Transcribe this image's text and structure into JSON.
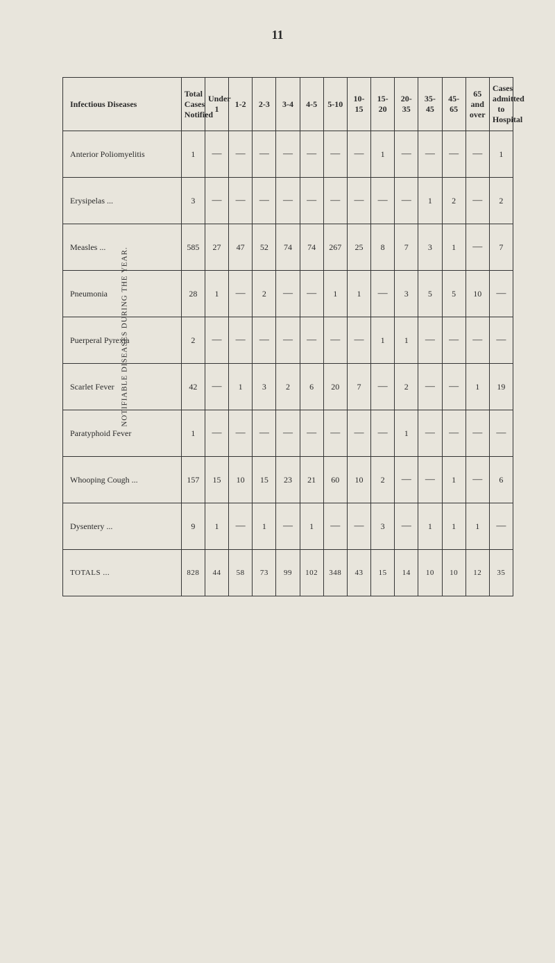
{
  "page_number": "11",
  "side_caption": "NOTIFIABLE DISEASES DURING THE YEAR.",
  "columns": [
    {
      "key": "label",
      "header": "Infectious Diseases"
    },
    {
      "key": "total",
      "header": "Total Cases Notified"
    },
    {
      "key": "u1",
      "header": "Under 1"
    },
    {
      "key": "a1_2",
      "header": "1-2"
    },
    {
      "key": "a2_3",
      "header": "2-3"
    },
    {
      "key": "a3_4",
      "header": "3-4"
    },
    {
      "key": "a4_5",
      "header": "4-5"
    },
    {
      "key": "a5_10",
      "header": "5-10"
    },
    {
      "key": "a10_15",
      "header": "10-15"
    },
    {
      "key": "a15_20",
      "header": "15-20"
    },
    {
      "key": "a20_35",
      "header": "20-35"
    },
    {
      "key": "a35_45",
      "header": "35-45"
    },
    {
      "key": "a45_65",
      "header": "45-65"
    },
    {
      "key": "a65",
      "header": "65 and over"
    },
    {
      "key": "hosp",
      "header": "Cases admitted to Hospital"
    }
  ],
  "rows": [
    {
      "label": "Anterior Poliomyelitis",
      "total": "1",
      "u1": "—",
      "a1_2": "—",
      "a2_3": "—",
      "a3_4": "—",
      "a4_5": "—",
      "a5_10": "—",
      "a10_15": "—",
      "a15_20": "1",
      "a20_35": "—",
      "a35_45": "—",
      "a45_65": "—",
      "a65": "—",
      "hosp": "1"
    },
    {
      "label": "Erysipelas ...",
      "total": "3",
      "u1": "—",
      "a1_2": "—",
      "a2_3": "—",
      "a3_4": "—",
      "a4_5": "—",
      "a5_10": "—",
      "a10_15": "—",
      "a15_20": "—",
      "a20_35": "—",
      "a35_45": "1",
      "a45_65": "2",
      "a65": "—",
      "hosp": "2"
    },
    {
      "label": "Measles ...",
      "total": "585",
      "u1": "27",
      "a1_2": "47",
      "a2_3": "52",
      "a3_4": "74",
      "a4_5": "74",
      "a5_10": "267",
      "a10_15": "25",
      "a15_20": "8",
      "a20_35": "7",
      "a35_45": "3",
      "a45_65": "1",
      "a65": "—",
      "hosp": "7"
    },
    {
      "label": "Pneumonia",
      "total": "28",
      "u1": "1",
      "a1_2": "—",
      "a2_3": "2",
      "a3_4": "—",
      "a4_5": "—",
      "a5_10": "1",
      "a10_15": "1",
      "a15_20": "—",
      "a20_35": "3",
      "a35_45": "5",
      "a45_65": "5",
      "a65": "10",
      "hosp": "—"
    },
    {
      "label": "Puerperal Pyrexia",
      "total": "2",
      "u1": "—",
      "a1_2": "—",
      "a2_3": "—",
      "a3_4": "—",
      "a4_5": "—",
      "a5_10": "—",
      "a10_15": "—",
      "a15_20": "1",
      "a20_35": "1",
      "a35_45": "—",
      "a45_65": "—",
      "a65": "—",
      "hosp": "—"
    },
    {
      "label": "Scarlet Fever",
      "total": "42",
      "u1": "—",
      "a1_2": "1",
      "a2_3": "3",
      "a3_4": "2",
      "a4_5": "6",
      "a5_10": "20",
      "a10_15": "7",
      "a15_20": "—",
      "a20_35": "2",
      "a35_45": "—",
      "a45_65": "—",
      "a65": "1",
      "hosp": "19"
    },
    {
      "label": "Paratyphoid Fever",
      "total": "1",
      "u1": "—",
      "a1_2": "—",
      "a2_3": "—",
      "a3_4": "—",
      "a4_5": "—",
      "a5_10": "—",
      "a10_15": "—",
      "a15_20": "—",
      "a20_35": "1",
      "a35_45": "—",
      "a45_65": "—",
      "a65": "—",
      "hosp": "—"
    },
    {
      "label": "Whooping Cough ...",
      "total": "157",
      "u1": "15",
      "a1_2": "10",
      "a2_3": "15",
      "a3_4": "23",
      "a4_5": "21",
      "a5_10": "60",
      "a10_15": "10",
      "a15_20": "2",
      "a20_35": "—",
      "a35_45": "—",
      "a45_65": "1",
      "a65": "—",
      "hosp": "6"
    },
    {
      "label": "Dysentery ...",
      "total": "9",
      "u1": "1",
      "a1_2": "—",
      "a2_3": "1",
      "a3_4": "—",
      "a4_5": "1",
      "a5_10": "—",
      "a10_15": "—",
      "a15_20": "3",
      "a20_35": "—",
      "a35_45": "1",
      "a45_65": "1",
      "a65": "1",
      "hosp": "—"
    }
  ],
  "totals": {
    "label": "TOTALS ...",
    "total": "828",
    "u1": "44",
    "a1_2": "58",
    "a2_3": "73",
    "a3_4": "99",
    "a4_5": "102",
    "a5_10": "348",
    "a10_15": "43",
    "a15_20": "15",
    "a20_35": "14",
    "a35_45": "10",
    "a45_65": "10",
    "a65": "12",
    "hosp": "35"
  }
}
